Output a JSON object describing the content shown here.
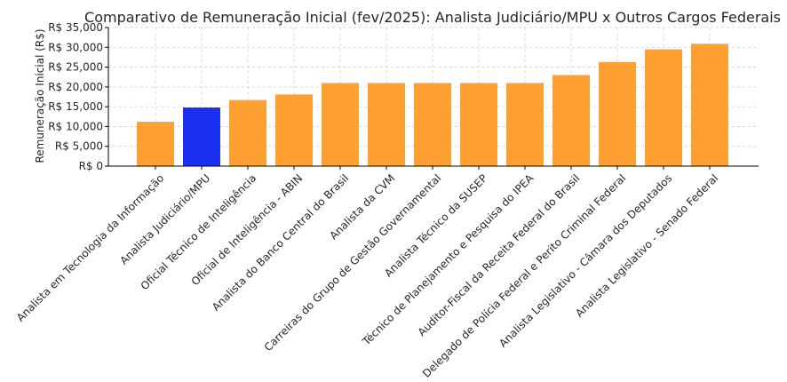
{
  "chart_data": {
    "type": "bar",
    "title": "Comparativo de Remuneração Inicial (fev/2025): Analista Judiciário/MPU x Outros Cargos Federais",
    "xlabel": "",
    "ylabel": "Remuneração Inicial (R$)",
    "ylim": [
      0,
      35000
    ],
    "yticks": [
      0,
      5000,
      10000,
      15000,
      20000,
      25000,
      30000,
      35000
    ],
    "ytick_labels": [
      "R$ 0",
      "R$ 5,000",
      "R$ 10,000",
      "R$ 15,000",
      "R$ 20,000",
      "R$ 25,000",
      "R$ 30,000",
      "R$ 35,000"
    ],
    "grid": true,
    "categories": [
      "Analista em Tecnologia da Informação",
      "Analista Judiciário/MPU",
      "Oficial Técnico de Inteligência",
      "Oficial de Inteligência - ABIN",
      "Analista do Banco Central do Brasil",
      "Analista da CVM",
      "Carreiras do Grupo de Gestão Governamental",
      "Analista Técnico da SUSEP",
      "Técnico de Planejamento e Pesquisa do IPEA",
      "Auditor-Fiscal da Receita Federal do Brasil",
      "Delegado de Polícia Federal e Perito Criminal Federal",
      "Analista Legislativo - Câmara dos Deputados",
      "Analista Legislativo - Senado Federal"
    ],
    "values": [
      11200,
      14800,
      16700,
      18100,
      21000,
      21000,
      21000,
      21000,
      21000,
      23000,
      26300,
      29500,
      30900
    ],
    "colors": [
      "#ffa033",
      "#1a2ff0",
      "#ffa033",
      "#ffa033",
      "#ffa033",
      "#ffa033",
      "#ffa033",
      "#ffa033",
      "#ffa033",
      "#ffa033",
      "#ffa033",
      "#ffa033",
      "#ffa033"
    ]
  }
}
